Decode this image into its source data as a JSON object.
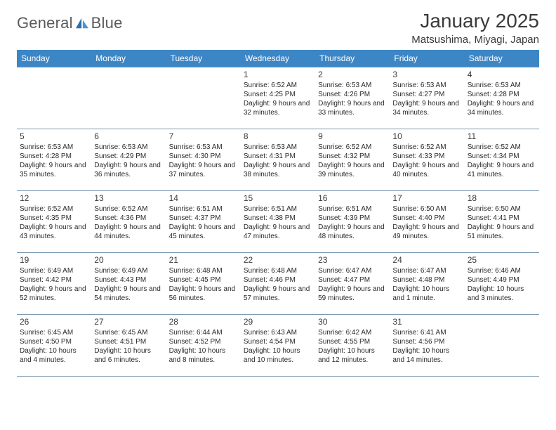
{
  "brand": {
    "word1": "General",
    "word2": "Blue"
  },
  "title": "January 2025",
  "location": "Matsushima, Miyagi, Japan",
  "colors": {
    "header_bg": "#3d86c6",
    "header_text": "#ffffff",
    "cell_border": "#7a98b0",
    "text": "#2a2a2a",
    "logo_blue_dark": "#2f6fa8",
    "logo_blue_light": "#4a93d4"
  },
  "fonts": {
    "title_size": 28,
    "location_size": 15,
    "dayheader_size": 12,
    "daynum_size": 12,
    "body_size": 10
  },
  "day_headers": [
    "Sunday",
    "Monday",
    "Tuesday",
    "Wednesday",
    "Thursday",
    "Friday",
    "Saturday"
  ],
  "weeks": [
    [
      null,
      null,
      null,
      {
        "n": "1",
        "sr": "6:52 AM",
        "ss": "4:25 PM",
        "dl": "9 hours and 32 minutes."
      },
      {
        "n": "2",
        "sr": "6:53 AM",
        "ss": "4:26 PM",
        "dl": "9 hours and 33 minutes."
      },
      {
        "n": "3",
        "sr": "6:53 AM",
        "ss": "4:27 PM",
        "dl": "9 hours and 34 minutes."
      },
      {
        "n": "4",
        "sr": "6:53 AM",
        "ss": "4:28 PM",
        "dl": "9 hours and 34 minutes."
      }
    ],
    [
      {
        "n": "5",
        "sr": "6:53 AM",
        "ss": "4:28 PM",
        "dl": "9 hours and 35 minutes."
      },
      {
        "n": "6",
        "sr": "6:53 AM",
        "ss": "4:29 PM",
        "dl": "9 hours and 36 minutes."
      },
      {
        "n": "7",
        "sr": "6:53 AM",
        "ss": "4:30 PM",
        "dl": "9 hours and 37 minutes."
      },
      {
        "n": "8",
        "sr": "6:53 AM",
        "ss": "4:31 PM",
        "dl": "9 hours and 38 minutes."
      },
      {
        "n": "9",
        "sr": "6:52 AM",
        "ss": "4:32 PM",
        "dl": "9 hours and 39 minutes."
      },
      {
        "n": "10",
        "sr": "6:52 AM",
        "ss": "4:33 PM",
        "dl": "9 hours and 40 minutes."
      },
      {
        "n": "11",
        "sr": "6:52 AM",
        "ss": "4:34 PM",
        "dl": "9 hours and 41 minutes."
      }
    ],
    [
      {
        "n": "12",
        "sr": "6:52 AM",
        "ss": "4:35 PM",
        "dl": "9 hours and 43 minutes."
      },
      {
        "n": "13",
        "sr": "6:52 AM",
        "ss": "4:36 PM",
        "dl": "9 hours and 44 minutes."
      },
      {
        "n": "14",
        "sr": "6:51 AM",
        "ss": "4:37 PM",
        "dl": "9 hours and 45 minutes."
      },
      {
        "n": "15",
        "sr": "6:51 AM",
        "ss": "4:38 PM",
        "dl": "9 hours and 47 minutes."
      },
      {
        "n": "16",
        "sr": "6:51 AM",
        "ss": "4:39 PM",
        "dl": "9 hours and 48 minutes."
      },
      {
        "n": "17",
        "sr": "6:50 AM",
        "ss": "4:40 PM",
        "dl": "9 hours and 49 minutes."
      },
      {
        "n": "18",
        "sr": "6:50 AM",
        "ss": "4:41 PM",
        "dl": "9 hours and 51 minutes."
      }
    ],
    [
      {
        "n": "19",
        "sr": "6:49 AM",
        "ss": "4:42 PM",
        "dl": "9 hours and 52 minutes."
      },
      {
        "n": "20",
        "sr": "6:49 AM",
        "ss": "4:43 PM",
        "dl": "9 hours and 54 minutes."
      },
      {
        "n": "21",
        "sr": "6:48 AM",
        "ss": "4:45 PM",
        "dl": "9 hours and 56 minutes."
      },
      {
        "n": "22",
        "sr": "6:48 AM",
        "ss": "4:46 PM",
        "dl": "9 hours and 57 minutes."
      },
      {
        "n": "23",
        "sr": "6:47 AM",
        "ss": "4:47 PM",
        "dl": "9 hours and 59 minutes."
      },
      {
        "n": "24",
        "sr": "6:47 AM",
        "ss": "4:48 PM",
        "dl": "10 hours and 1 minute."
      },
      {
        "n": "25",
        "sr": "6:46 AM",
        "ss": "4:49 PM",
        "dl": "10 hours and 3 minutes."
      }
    ],
    [
      {
        "n": "26",
        "sr": "6:45 AM",
        "ss": "4:50 PM",
        "dl": "10 hours and 4 minutes."
      },
      {
        "n": "27",
        "sr": "6:45 AM",
        "ss": "4:51 PM",
        "dl": "10 hours and 6 minutes."
      },
      {
        "n": "28",
        "sr": "6:44 AM",
        "ss": "4:52 PM",
        "dl": "10 hours and 8 minutes."
      },
      {
        "n": "29",
        "sr": "6:43 AM",
        "ss": "4:54 PM",
        "dl": "10 hours and 10 minutes."
      },
      {
        "n": "30",
        "sr": "6:42 AM",
        "ss": "4:55 PM",
        "dl": "10 hours and 12 minutes."
      },
      {
        "n": "31",
        "sr": "6:41 AM",
        "ss": "4:56 PM",
        "dl": "10 hours and 14 minutes."
      },
      null
    ]
  ],
  "labels": {
    "sunrise": "Sunrise:",
    "sunset": "Sunset:",
    "daylight": "Daylight:"
  }
}
